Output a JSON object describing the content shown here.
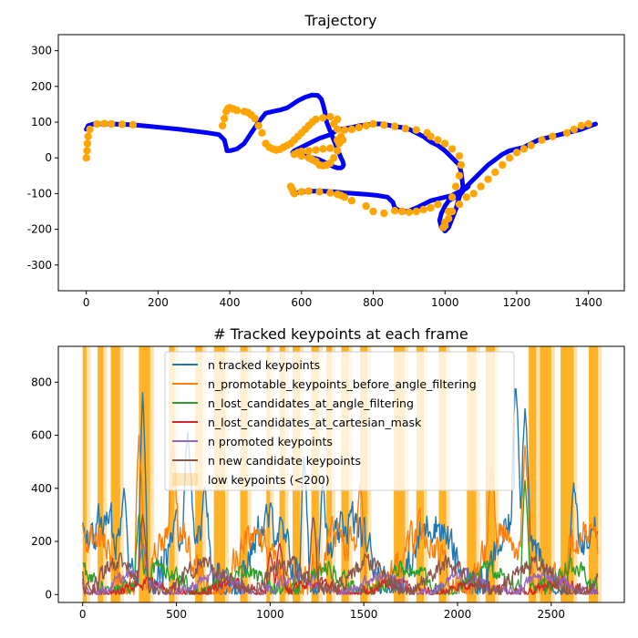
{
  "chart_data": [
    {
      "type": "scatter",
      "title": "Trajectory",
      "xlabel": "",
      "ylabel": "",
      "xlim": [
        -78,
        1500
      ],
      "ylim": [
        -372,
        345
      ],
      "xticks": [
        "0",
        "200",
        "400",
        "600",
        "800",
        "1000",
        "1200",
        "1400"
      ],
      "yticks": [
        "300",
        "200",
        "100",
        "0",
        "-100",
        "-200",
        "-300"
      ],
      "grid": false,
      "colors": {
        "path": "#0000ff",
        "highlight": "#ffa500"
      },
      "path": {
        "x": [
          0,
          5,
          20,
          60,
          100,
          140,
          180,
          220,
          260,
          300,
          340,
          370,
          385,
          390,
          392,
          400,
          420,
          440,
          460,
          480,
          500,
          520,
          540,
          560,
          575,
          590,
          610,
          630,
          645,
          655,
          660,
          665,
          670,
          680,
          690,
          700,
          710,
          715,
          717,
          715,
          710,
          700,
          690,
          680,
          670,
          660,
          650,
          640,
          630,
          620,
          610,
          600,
          590,
          580,
          575,
          580,
          600,
          630,
          650,
          680,
          700,
          720,
          740,
          760,
          780,
          800,
          820,
          840,
          860,
          880,
          900,
          910,
          920,
          940,
          960,
          980,
          1000,
          1010,
          1020,
          1030,
          1040,
          1045,
          1050,
          1040,
          1030,
          1020,
          1010,
          1000,
          990,
          985,
          990,
          1000,
          1010,
          1020,
          1030,
          1045,
          1060,
          1080,
          1100,
          1120,
          1140,
          1160,
          1180,
          1200,
          1220,
          1240,
          1260,
          1280,
          1300,
          1320,
          1340,
          1360,
          1380,
          1400,
          1420
        ],
        "y": [
          80,
          90,
          95,
          95,
          94,
          92,
          88,
          84,
          80,
          75,
          70,
          65,
          50,
          30,
          20,
          20,
          25,
          40,
          70,
          100,
          125,
          130,
          134,
          140,
          150,
          160,
          170,
          176,
          175,
          165,
          150,
          130,
          100,
          75,
          50,
          25,
          0,
          -10,
          -20,
          -25,
          -28,
          -28,
          -25,
          -20,
          -15,
          -10,
          -5,
          -2,
          0,
          2,
          5,
          8,
          10,
          12,
          15,
          20,
          30,
          45,
          55,
          65,
          78,
          82,
          85,
          90,
          92,
          95,
          95,
          92,
          88,
          85,
          80,
          75,
          70,
          60,
          45,
          35,
          20,
          10,
          0,
          -10,
          -20,
          -40,
          -80,
          -110,
          -145,
          -170,
          -195,
          -205,
          -195,
          -175,
          -155,
          -135,
          -120,
          -115,
          -110,
          -100,
          -80,
          -60,
          -40,
          -20,
          -5,
          10,
          20,
          25,
          30,
          40,
          50,
          55,
          60,
          65,
          70,
          75,
          80,
          88,
          95
        ],
        "x2": [
          575,
          600,
          630,
          660,
          690,
          720,
          750,
          780,
          810,
          840,
          850,
          855,
          860,
          880,
          900,
          920,
          940,
          960,
          980,
          1000,
          1010,
          1020,
          1030,
          1040,
          1050,
          1060,
          1065
        ],
        "y2": [
          -100,
          -95,
          -93,
          -93,
          -95,
          -98,
          -100,
          -102,
          -105,
          -110,
          -120,
          -125,
          -140,
          -152,
          -148,
          -140,
          -130,
          -120,
          -115,
          -110,
          -108,
          -105,
          -100,
          -95,
          -90,
          -85,
          -80
        ]
      },
      "highlights": {
        "x": [
          0,
          2,
          3,
          5,
          10,
          30,
          50,
          70,
          100,
          130,
          380,
          385,
          390,
          395,
          400,
          410,
          420,
          440,
          450,
          460,
          470,
          480,
          490,
          500,
          510,
          520,
          530,
          540,
          550,
          560,
          570,
          580,
          590,
          600,
          610,
          620,
          630,
          640,
          660,
          680,
          700,
          690,
          700,
          710,
          715,
          705,
          700,
          690,
          680,
          670,
          660,
          650,
          640,
          630,
          620,
          600,
          580,
          590,
          600,
          620,
          640,
          660,
          680,
          700,
          720,
          740,
          760,
          780,
          800,
          830,
          860,
          890,
          920,
          950,
          960,
          980,
          1000,
          1020,
          1040,
          1045,
          1040,
          1030,
          1020,
          1010,
          1000,
          995,
          1000,
          1010,
          1020,
          1040,
          1060,
          1080,
          1100,
          1120,
          1140,
          1160,
          1180,
          1200,
          1220,
          1240,
          1270,
          1300,
          1340,
          1360,
          1380,
          1400,
          570,
          575,
          580,
          600,
          620,
          650,
          680,
          700,
          710,
          720,
          740,
          780,
          800,
          830,
          860,
          880,
          900,
          920,
          940,
          960,
          980
        ],
        "y": [
          0,
          20,
          40,
          60,
          80,
          95,
          96,
          95,
          94,
          93,
          90,
          110,
          130,
          138,
          140,
          137,
          133,
          130,
          127,
          120,
          110,
          90,
          70,
          40,
          30,
          25,
          22,
          24,
          30,
          35,
          40,
          50,
          60,
          70,
          80,
          90,
          100,
          108,
          112,
          115,
          108,
          95,
          80,
          60,
          50,
          40,
          20,
          0,
          -15,
          -20,
          -22,
          -20,
          -10,
          -5,
          0,
          5,
          10,
          15,
          18,
          20,
          22,
          25,
          27,
          50,
          78,
          80,
          85,
          90,
          95,
          92,
          88,
          82,
          78,
          70,
          60,
          50,
          40,
          25,
          5,
          -20,
          -50,
          -80,
          -110,
          -150,
          -180,
          -195,
          -190,
          -170,
          -150,
          -130,
          -110,
          -100,
          -80,
          -60,
          -40,
          -20,
          0,
          15,
          25,
          35,
          50,
          60,
          70,
          80,
          90,
          95,
          -80,
          -90,
          -100,
          -95,
          -93,
          -95,
          -98,
          -102,
          -105,
          -110,
          -120,
          -135,
          -150,
          -155,
          -148,
          -150,
          -152,
          -150,
          -145,
          -140,
          -130
        ]
      }
    },
    {
      "type": "line",
      "title": "# Tracked keypoints at each frame",
      "xlabel": "",
      "ylabel": "",
      "xlim": [
        -130,
        2890
      ],
      "ylim": [
        -30,
        935
      ],
      "xticks": [
        "0",
        "500",
        "1000",
        "1500",
        "2000",
        "2500"
      ],
      "yticks": [
        "800",
        "600",
        "400",
        "200",
        "0"
      ],
      "grid": false,
      "legend": "upper-left",
      "series": [
        {
          "name": "n tracked keypoints",
          "color": "#1f77b4",
          "base": 260,
          "amp": 120,
          "spikes": [
            [
              0,
              270
            ],
            [
              220,
              400
            ],
            [
              320,
              760
            ],
            [
              560,
              610
            ],
            [
              650,
              410
            ],
            [
              1180,
              520
            ],
            [
              1280,
              430
            ],
            [
              2310,
              800
            ],
            [
              2360,
              700
            ],
            [
              2620,
              420
            ],
            [
              2720,
              250
            ]
          ]
        },
        {
          "name": "n_promotable_keypoints_before_angle_filtering",
          "color": "#ff7f0e",
          "base": 220,
          "amp": 110,
          "spikes": [
            [
              300,
              600
            ],
            [
              480,
              570
            ],
            [
              1480,
              420
            ],
            [
              2180,
              480
            ],
            [
              2360,
              560
            ],
            [
              2720,
              250
            ]
          ]
        },
        {
          "name": "n_lost_candidates_at_angle_filtering",
          "color": "#2ca02c",
          "base": 90,
          "amp": 60,
          "spikes": [
            [
              300,
              300
            ],
            [
              2360,
              430
            ]
          ]
        },
        {
          "name": "n_lost_candidates_at_cartesian_mask",
          "color": "#d62728",
          "base": 40,
          "amp": 35,
          "spikes": [
            [
              1000,
              160
            ],
            [
              1050,
              200
            ]
          ]
        },
        {
          "name": "n promoted keypoints",
          "color": "#9467bd",
          "base": 70,
          "amp": 40,
          "spikes": [
            [
              320,
              190
            ]
          ]
        },
        {
          "name": "n new candidate keypoints",
          "color": "#8c564b",
          "base": 110,
          "amp": 60,
          "spikes": [
            [
              320,
              300
            ],
            [
              1230,
              300
            ]
          ]
        },
        {
          "name": "low keypoints (<200)",
          "color": "#ffa500"
        }
      ],
      "frames": 2750,
      "low_regions": [
        [
          0,
          20
        ],
        [
          80,
          110
        ],
        [
          150,
          200
        ],
        [
          300,
          360
        ],
        [
          460,
          490
        ],
        [
          600,
          640
        ],
        [
          700,
          760
        ],
        [
          840,
          880
        ],
        [
          980,
          1000
        ],
        [
          1050,
          1080
        ],
        [
          1120,
          1160
        ],
        [
          1220,
          1260
        ],
        [
          1300,
          1330
        ],
        [
          1380,
          1420
        ],
        [
          1480,
          1520
        ],
        [
          1660,
          1720
        ],
        [
          1780,
          1820
        ],
        [
          1900,
          1940
        ],
        [
          2050,
          2100
        ],
        [
          2150,
          2200
        ],
        [
          2380,
          2420
        ],
        [
          2440,
          2500
        ],
        [
          2550,
          2620
        ],
        [
          2700,
          2750
        ]
      ]
    }
  ]
}
